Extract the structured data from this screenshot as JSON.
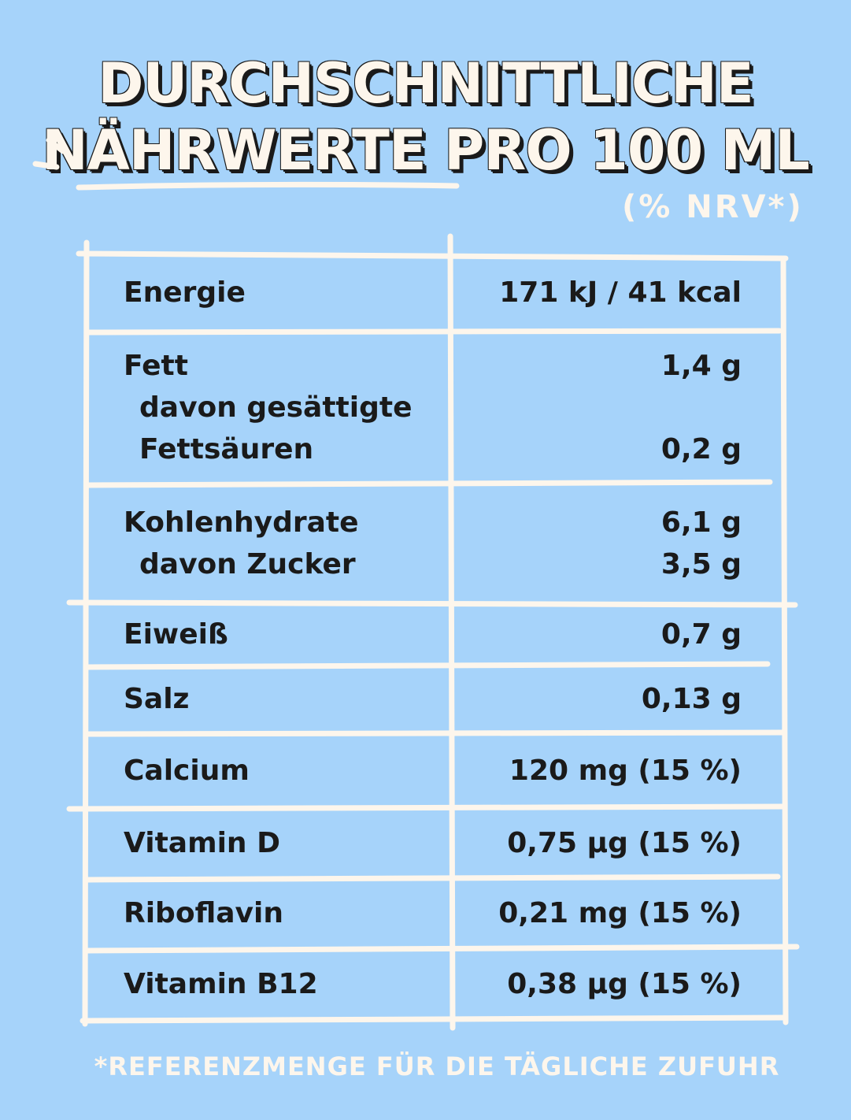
{
  "header": {
    "title": [
      "DURCHSCHNITTLICHE",
      "NÄHRWERTE PRO 100 ML"
    ],
    "subtitle": "(% NRV*)"
  },
  "table": {
    "rows": [
      {
        "lines": [
          [
            "Energie",
            "171 kJ / 41 kcal"
          ]
        ]
      },
      {
        "lines": [
          [
            "Fett",
            "1,4 g"
          ],
          [
            "davon gesättigte"
          ],
          [
            "Fettsäuren",
            "0,2 g"
          ]
        ]
      },
      {
        "lines": [
          [
            "Kohlenhydrate",
            "6,1 g"
          ],
          [
            "davon Zucker",
            "3,5 g"
          ]
        ]
      },
      {
        "lines": [
          [
            "Eiweiß",
            "0,7 g"
          ]
        ]
      },
      {
        "lines": [
          [
            "Salz",
            "0,13 g"
          ]
        ]
      },
      {
        "lines": [
          [
            "Calcium",
            "120 mg (15 %)"
          ]
        ]
      },
      {
        "lines": [
          [
            "Vitamin D",
            "0,75 µg (15 %)"
          ]
        ]
      },
      {
        "lines": [
          [
            "Riboflavin",
            "0,21 mg (15 %)"
          ]
        ]
      },
      {
        "lines": [
          [
            "Vitamin B12",
            "0,38 µg (15 %)"
          ]
        ]
      }
    ]
  },
  "footer": "*REFERENZMENGE FÜR DIE TÄGLICHE ZUFUHR"
}
